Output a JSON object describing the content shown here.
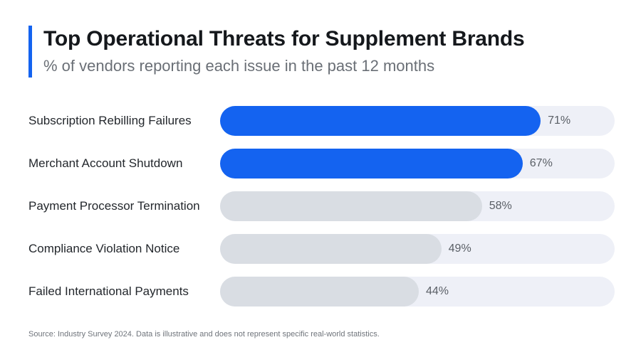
{
  "header": {
    "title": "Top Operational Threats for Supplement Brands",
    "subtitle": "% of vendors reporting each issue in the past 12 months"
  },
  "footer": {
    "source": "Source: Industry Survey 2024. Data is illustrative and does not represent specific real-world statistics."
  },
  "colors": {
    "accent": "#1463f0",
    "bar_muted": "#d9dde3",
    "track": "#eef0f7"
  },
  "chart_data": {
    "type": "bar",
    "orientation": "horizontal",
    "title": "Top Operational Threats for Supplement Brands",
    "subtitle": "% of vendors reporting each issue in the past 12 months",
    "unit": "%",
    "xlim": [
      0,
      100
    ],
    "grid": false,
    "categories": [
      "Subscription Rebilling Failures",
      "Merchant Account Shutdown",
      "Payment Processor Termination",
      "Compliance Violation Notice",
      "Failed International Payments"
    ],
    "values": [
      71,
      67,
      58,
      49,
      44
    ],
    "value_labels": [
      "71%",
      "67%",
      "58%",
      "49%",
      "44%"
    ],
    "highlighted": [
      true,
      true,
      false,
      false,
      false
    ]
  }
}
